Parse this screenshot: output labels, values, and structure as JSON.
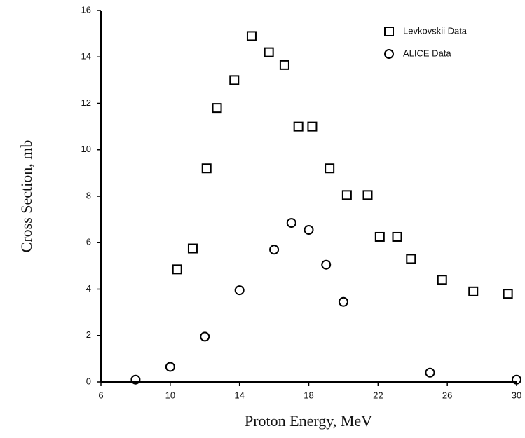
{
  "chart_data": {
    "type": "scatter",
    "xlabel": "Proton Energy, MeV",
    "ylabel": "Cross Section, mb",
    "xlim": [
      6,
      30
    ],
    "xticks": [
      6,
      10,
      14,
      18,
      22,
      26,
      30
    ],
    "ylim": [
      0,
      16
    ],
    "yticks": [
      0,
      2,
      4,
      6,
      8,
      10,
      12,
      14,
      16
    ],
    "legend": "top-right",
    "series": [
      {
        "name": "Levkovskii Data",
        "marker": "square",
        "color": "#000000",
        "x": [
          10.4,
          11.3,
          12.1,
          12.7,
          13.7,
          14.7,
          15.7,
          16.6,
          17.4,
          18.2,
          19.2,
          20.2,
          21.4,
          22.1,
          23.1,
          23.9,
          25.7,
          27.5,
          29.5
        ],
        "values": [
          4.85,
          5.75,
          9.2,
          11.8,
          13.0,
          14.9,
          14.2,
          13.65,
          11.0,
          11.0,
          9.2,
          8.05,
          8.05,
          6.25,
          6.25,
          5.3,
          4.4,
          3.9,
          3.8
        ]
      },
      {
        "name": "ALICE Data",
        "marker": "circle",
        "color": "#000000",
        "x": [
          8,
          10,
          12,
          14,
          16,
          17,
          18,
          19,
          20,
          25,
          30
        ],
        "values": [
          0.1,
          0.65,
          1.95,
          3.95,
          5.7,
          6.85,
          6.55,
          5.05,
          3.45,
          0.4,
          0.1
        ]
      }
    ]
  }
}
